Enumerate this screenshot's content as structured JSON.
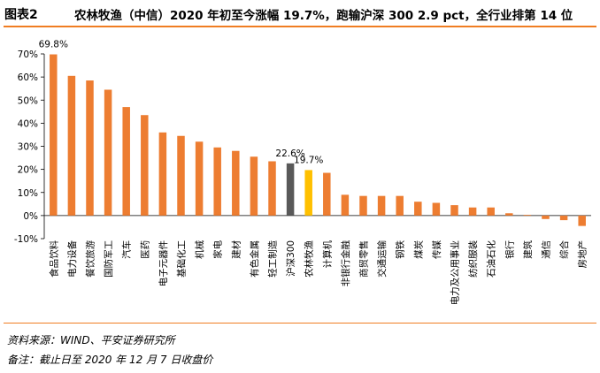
{
  "figure": {
    "label": "图表2",
    "title": "农林牧渔（中信）2020 年初至今涨幅 19.7%，跑输沪深 300 2.9 pct，全行业排第 14 位"
  },
  "notes": {
    "source": "资料来源：WIND、平安证券研究所",
    "remark": "备注：截止日至 2020 年 12 月 7 日收盘价"
  },
  "colors": {
    "accent": "#f07d22",
    "bar_default": "#ed7d31",
    "bar_index": "#595959",
    "bar_highlight": "#ffc000"
  },
  "chart_data": {
    "type": "bar",
    "categories": [
      "食品饮料",
      "电力设备",
      "餐饮旅游",
      "国防军工",
      "汽车",
      "医药",
      "电子元器件",
      "基础化工",
      "机械",
      "家电",
      "建材",
      "有色金属",
      "轻工制造",
      "沪深300",
      "农林牧渔",
      "计算机",
      "非银行金融",
      "商贸零售",
      "交通运输",
      "钢铁",
      "煤炭",
      "传媒",
      "电力及公用事业",
      "纺织服装",
      "石油石化",
      "银行",
      "建筑",
      "通信",
      "综合",
      "房地产"
    ],
    "values": [
      69.8,
      60.5,
      58.5,
      54.5,
      47.0,
      43.5,
      36.0,
      34.5,
      32.0,
      29.5,
      28.0,
      25.5,
      23.5,
      22.6,
      19.7,
      18.5,
      9.0,
      8.5,
      8.5,
      8.5,
      6.0,
      5.5,
      4.5,
      3.5,
      3.5,
      1.0,
      0.3,
      -1.5,
      -2.0,
      -4.5
    ],
    "highlight": {
      "沪深300": "index",
      "农林牧渔": "highlight"
    },
    "data_labels": [
      {
        "category": "食品饮料",
        "text": "69.8%"
      },
      {
        "category": "沪深300",
        "text": "22.6%"
      },
      {
        "category": "农林牧渔",
        "text": "19.7%"
      }
    ],
    "ylim": [
      -10,
      70
    ],
    "yticks": [
      "-10%",
      "0%",
      "10%",
      "20%",
      "30%",
      "40%",
      "50%",
      "60%",
      "70%"
    ],
    "ytick_values": [
      -10,
      0,
      10,
      20,
      30,
      40,
      50,
      60,
      70
    ],
    "grid": false,
    "legend": "none"
  }
}
